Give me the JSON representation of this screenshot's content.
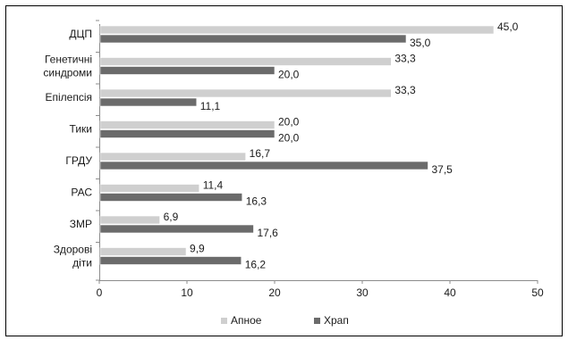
{
  "chart_data": {
    "type": "bar",
    "orientation": "horizontal",
    "categories": [
      [
        "ДЦП"
      ],
      [
        "Генетичні",
        "синдроми"
      ],
      [
        "Епілепсія"
      ],
      [
        "Тики"
      ],
      [
        "ГРДУ"
      ],
      [
        "РАС"
      ],
      [
        "ЗМР"
      ],
      [
        "Здорові",
        "діти"
      ]
    ],
    "series": [
      {
        "name": "Апное",
        "values": [
          45.0,
          33.3,
          33.3,
          20.0,
          16.7,
          11.4,
          6.9,
          9.9
        ],
        "labels": [
          "45,0",
          "33,3",
          "33,3",
          "20,0",
          "16,7",
          "11,4",
          "6,9",
          "9,9"
        ]
      },
      {
        "name": "Храп",
        "values": [
          35.0,
          20.0,
          11.1,
          20.0,
          37.5,
          16.3,
          17.6,
          16.2
        ],
        "labels": [
          "35,0",
          "20,0",
          "11,1",
          "20,0",
          "37,5",
          "16,3",
          "17,6",
          "16,2"
        ]
      }
    ],
    "x_ticks": [
      0,
      10,
      20,
      30,
      40,
      50
    ],
    "xlim": [
      0,
      50
    ],
    "grid": false,
    "legend_position": "bottom",
    "colors": {
      "Апное": "#cfcfcf",
      "Храп": "#6b6b6b"
    }
  }
}
